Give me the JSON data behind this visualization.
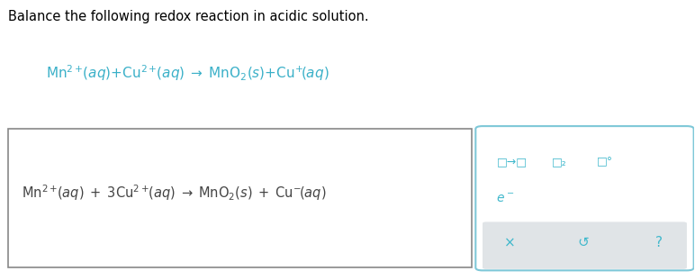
{
  "bg_color": "#ffffff",
  "title_text": "Balance the following redox reaction in acidic solution.",
  "title_color": "#000000",
  "title_fontsize": 10.5,
  "eq_top_color": "#3ab0c8",
  "eq_top_italic": true,
  "eq_bottom_color": "#555555",
  "answer_box_bg": "#ffffff",
  "answer_box_border": "#aaaaaa",
  "panel_bg": "#e8edf0",
  "panel_border": "#7ec8d8",
  "icon_color": "#40b8cc"
}
